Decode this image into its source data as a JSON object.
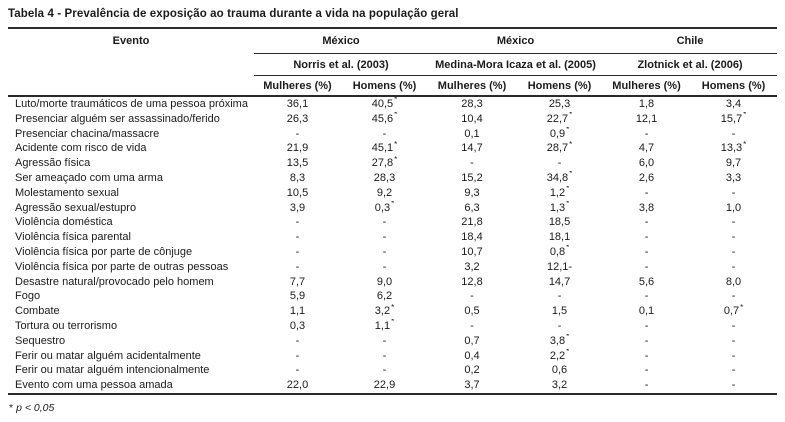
{
  "title": "Tabela 4 - Prevalência de exposição ao trauma durante a vida na população geral",
  "table": {
    "event_header": "Evento",
    "groups": [
      {
        "country": "México",
        "study": "Norris et al. (2003)",
        "col_women": "Mulheres (%)",
        "col_men": "Homens (%)"
      },
      {
        "country": "México",
        "study": "Medina-Mora Icaza et al. (2005)",
        "col_women": "Mulheres (%)",
        "col_men": "Homens (%)"
      },
      {
        "country": "Chile",
        "study": "Zlotnick et al. (2006)",
        "col_women": "Mulheres (%)",
        "col_men": "Homens (%)"
      }
    ],
    "rows": [
      {
        "event": "Luto/morte traumáticos de uma pessoa próxima",
        "values": [
          "36,1",
          "40,5*",
          "28,3",
          "25,3",
          "1,8",
          "3,4"
        ]
      },
      {
        "event": "Presenciar alguém ser assassinado/ferido",
        "values": [
          "26,3",
          "45,6*",
          "10,4",
          "22,7*",
          "12,1",
          "15,7*"
        ]
      },
      {
        "event": "Presenciar chacina/massacre",
        "values": [
          "-",
          "-",
          "0,1",
          "0,9*",
          "-",
          "-"
        ]
      },
      {
        "event": "Acidente com risco de vida",
        "values": [
          "21,9",
          "45,1*",
          "14,7",
          "28,7*",
          "4,7",
          "13,3*"
        ]
      },
      {
        "event": "Agressão física",
        "values": [
          "13,5",
          "27,8*",
          "-",
          "-",
          "6,0",
          "9,7"
        ]
      },
      {
        "event": "Ser ameaçado com uma arma",
        "values": [
          "8,3",
          "28,3",
          "15,2",
          "34,8*",
          "2,6",
          "3,3"
        ]
      },
      {
        "event": "Molestamento sexual",
        "values": [
          "10,5",
          "9,2",
          "9,3",
          "1,2*",
          "-",
          "-"
        ]
      },
      {
        "event": "Agressão sexual/estupro",
        "values": [
          "3,9",
          "0,3*",
          "6,3",
          "1,3*",
          "3,8",
          "1,0"
        ]
      },
      {
        "event": "Violência doméstica",
        "values": [
          "-",
          "-",
          "21,8",
          "18,5",
          "-",
          "-"
        ]
      },
      {
        "event": "Violência física parental",
        "values": [
          "-",
          "-",
          "18,4",
          "18,1",
          "-",
          "-"
        ]
      },
      {
        "event": "Violência física por parte de cônjuge",
        "values": [
          "-",
          "-",
          "10,7",
          "0,8*",
          "-",
          "-"
        ]
      },
      {
        "event": "Violência física por parte de outras pessoas",
        "values": [
          "-",
          "-",
          "3,2",
          "12,1-",
          "-",
          "-"
        ]
      },
      {
        "event": "Desastre natural/provocado pelo homem",
        "values": [
          "7,7",
          "9,0",
          "12,8",
          "14,7",
          "5,6",
          "8,0"
        ]
      },
      {
        "event": "Fogo",
        "values": [
          "5,9",
          "6,2",
          "-",
          "-",
          "-",
          "-"
        ]
      },
      {
        "event": "Combate",
        "values": [
          "1,1",
          "3,2*",
          "0,5",
          "1,5",
          "0,1",
          "0,7*"
        ]
      },
      {
        "event": "Tortura ou terrorismo",
        "values": [
          "0,3",
          "1,1*",
          "-",
          "-",
          "-",
          "-"
        ]
      },
      {
        "event": "Sequestro",
        "values": [
          "-",
          "-",
          "0,7",
          "3,8*",
          "-",
          "-"
        ]
      },
      {
        "event": "Ferir ou matar alguém acidentalmente",
        "values": [
          "-",
          "-",
          "0,4",
          "2,2*",
          "-",
          "-"
        ]
      },
      {
        "event": "Ferir ou matar alguém intencionalmente",
        "values": [
          "-",
          "-",
          "0,2",
          "0,6",
          "-",
          "-"
        ]
      },
      {
        "event": "Evento com uma pessoa amada",
        "values": [
          "22,0",
          "22,9",
          "3,7",
          "3,2",
          "-",
          "-"
        ]
      }
    ]
  },
  "footnote": {
    "marker": "*",
    "text": "p < 0,05"
  }
}
